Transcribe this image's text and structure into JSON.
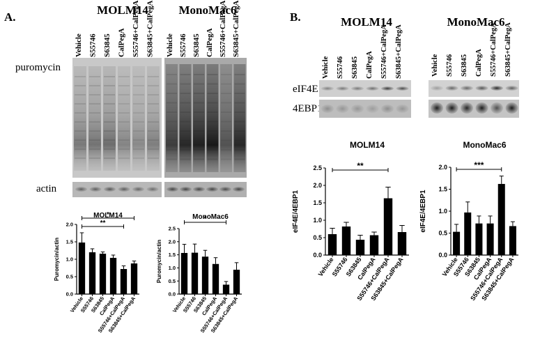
{
  "panel_a": {
    "letter": "A.",
    "cell_lines": [
      "MOLM14",
      "MonoMac6"
    ],
    "lanes": [
      "Vehicle",
      "S55746",
      "S63845",
      "CalPegA",
      "S55746+CalPegA",
      "S63845+CalPegA"
    ],
    "blot_labels": [
      "puromycin",
      "actin"
    ]
  },
  "panel_b": {
    "letter": "B.",
    "cell_lines": [
      "MOLM14",
      "MonoMac6"
    ],
    "lanes": [
      "Vehicle",
      "S55746",
      "S63845",
      "CalPegA",
      "S55746+CalPegA",
      "S63845+CalPegA"
    ],
    "blot_labels": [
      "eIF4E",
      "4EBP1"
    ]
  },
  "chart_data": [
    {
      "type": "bar",
      "title": "MOLM14",
      "ylabel": "Puromycin/actin",
      "categories": [
        "Vehicle",
        "S55746",
        "S63845",
        "CalPegA",
        "S55746+CalPegA",
        "S63845+CalPegA"
      ],
      "values": [
        1.48,
        1.2,
        1.16,
        1.04,
        0.72,
        0.88
      ],
      "errors": [
        0.28,
        0.1,
        0.05,
        0.08,
        0.09,
        0.07
      ],
      "ylim": [
        0,
        2.0
      ],
      "yticks": [
        "0.0",
        "0.5",
        "1.0",
        "1.5",
        "2.0"
      ],
      "significance": [
        {
          "from": 0,
          "to": 5,
          "label": "*"
        },
        {
          "from": 0,
          "to": 4,
          "label": "**"
        }
      ],
      "bar_color": "#000000"
    },
    {
      "type": "bar",
      "title": "MonoMac6",
      "ylabel": "Puromycin/actin",
      "categories": [
        "Vehicle",
        "S55746",
        "S63845",
        "CalPegA",
        "S55746+CalPegA",
        "S63845+CalPegA"
      ],
      "values": [
        1.57,
        1.58,
        1.43,
        1.15,
        0.36,
        0.93
      ],
      "errors": [
        0.33,
        0.33,
        0.24,
        0.24,
        0.12,
        0.27
      ],
      "ylim": [
        0,
        2.5
      ],
      "yticks": [
        "0.0",
        "0.5",
        "1.0",
        "1.5",
        "2.0",
        "2.5"
      ],
      "significance": [
        {
          "from": 0,
          "to": 4,
          "label": "*"
        }
      ],
      "bar_color": "#000000"
    },
    {
      "type": "bar",
      "title": "MOLM14",
      "ylabel": "eIF4E/4EBP1",
      "categories": [
        "Vehicle",
        "S55746",
        "S63845",
        "CalPegA",
        "S55746+CalPegA",
        "S63845+CalPegA"
      ],
      "values": [
        0.6,
        0.82,
        0.44,
        0.57,
        1.63,
        0.66
      ],
      "errors": [
        0.17,
        0.12,
        0.13,
        0.09,
        0.32,
        0.19
      ],
      "ylim": [
        0,
        2.5
      ],
      "yticks": [
        "0.0",
        "0.5",
        "1.0",
        "1.5",
        "2.0",
        "2.5"
      ],
      "significance": [
        {
          "from": 0,
          "to": 4,
          "label": "**"
        }
      ],
      "bar_color": "#000000"
    },
    {
      "type": "bar",
      "title": "MonoMac6",
      "ylabel": "eIF4E/4EBP1",
      "categories": [
        "Vehicle",
        "S55746",
        "S63845",
        "CalPegA",
        "S55746+CalPegA",
        "S63845+CalPegA"
      ],
      "values": [
        0.53,
        0.97,
        0.72,
        0.72,
        1.62,
        0.66
      ],
      "errors": [
        0.17,
        0.24,
        0.17,
        0.17,
        0.18,
        0.1
      ],
      "ylim": [
        0,
        2.0
      ],
      "yticks": [
        "0.0",
        "0.5",
        "1.0",
        "1.5",
        "2.0"
      ],
      "significance": [
        {
          "from": 0,
          "to": 4,
          "label": "***"
        }
      ],
      "bar_color": "#000000"
    }
  ]
}
